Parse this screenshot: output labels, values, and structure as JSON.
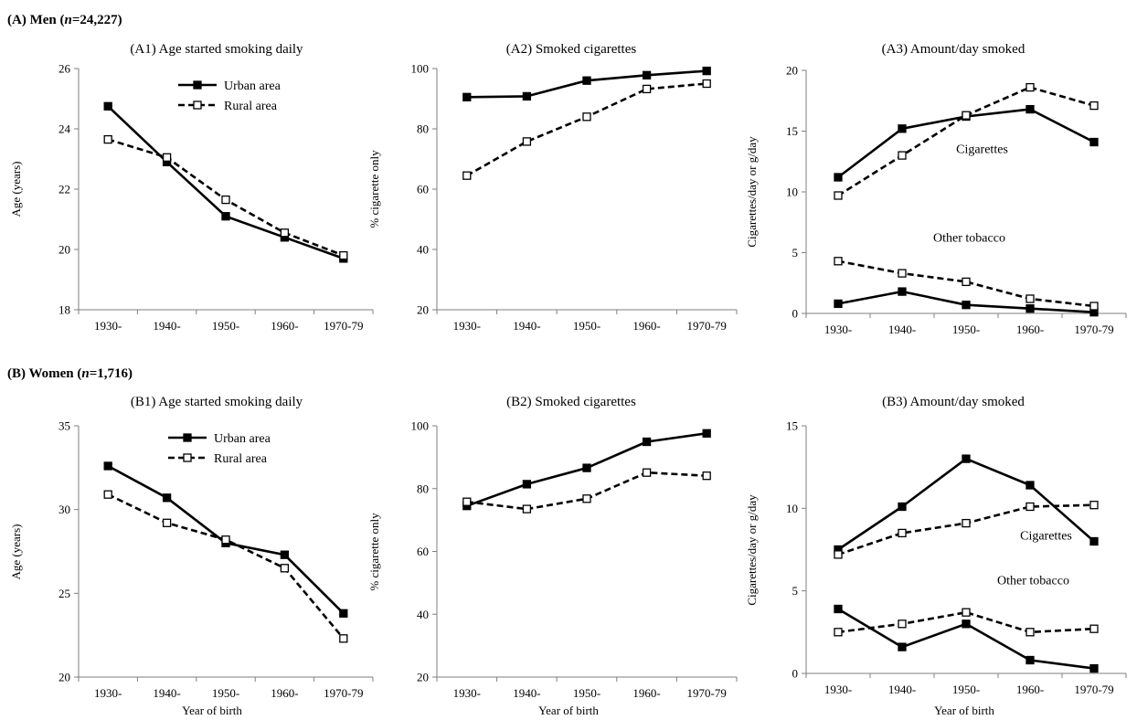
{
  "sections": [
    {
      "label_main": "(A) Men (",
      "label_italic": "n",
      "label_rest": "=24,227)"
    },
    {
      "label_main": "(B) Women (",
      "label_italic": "n",
      "label_rest": "=1,716)"
    }
  ],
  "colors": {
    "line": "#000000",
    "axis": "#7f7f7f",
    "marker_open_fill": "#ffffff"
  },
  "chart_data": [
    {
      "id": "A1",
      "type": "line",
      "title": "(A1) Age started smoking daily",
      "xlabel": "",
      "ylabel": "Age (years)",
      "categories": [
        "1930-",
        "1940-",
        "1950-",
        "1960-",
        "1970-79"
      ],
      "ylim": [
        18,
        26
      ],
      "yticks": [
        18,
        20,
        22,
        24,
        26
      ],
      "grid": false,
      "legend": {
        "position": "top-right",
        "entries": [
          "Urban area",
          "Rural area"
        ]
      },
      "annotations": [],
      "series": [
        {
          "name": "Urban area",
          "style": "solid",
          "marker": "filled-square",
          "values": [
            24.75,
            22.9,
            21.1,
            20.4,
            19.7
          ]
        },
        {
          "name": "Rural area",
          "style": "dashed",
          "marker": "open-square",
          "values": [
            23.65,
            23.05,
            21.65,
            20.55,
            19.8
          ]
        }
      ]
    },
    {
      "id": "A2",
      "type": "line",
      "title": "(A2) Smoked cigarettes",
      "xlabel": "",
      "ylabel": "% cigarette only",
      "categories": [
        "1930-",
        "1940-",
        "1950-",
        "1960-",
        "1970-79"
      ],
      "ylim": [
        20,
        100
      ],
      "yticks": [
        20,
        40,
        60,
        80,
        100
      ],
      "grid": false,
      "legend": null,
      "annotations": [],
      "series": [
        {
          "name": "Urban area",
          "style": "solid",
          "marker": "filled-square",
          "values": [
            90.5,
            90.8,
            96,
            97.8,
            99.2
          ]
        },
        {
          "name": "Rural area",
          "style": "dashed",
          "marker": "open-square",
          "values": [
            64.5,
            75.8,
            84,
            93.2,
            95
          ]
        }
      ]
    },
    {
      "id": "A3",
      "type": "line",
      "title": "(A3) Amount/day smoked",
      "xlabel": "",
      "ylabel": "Cigarettes/day or g/day",
      "categories": [
        "1930-",
        "1940-",
        "1950-",
        "1960-",
        "1970-79"
      ],
      "ylim": [
        0,
        20
      ],
      "yticks": [
        0,
        5,
        10,
        15,
        20
      ],
      "grid": false,
      "legend": null,
      "annotations": [
        {
          "text": "Cigarettes",
          "x": 2.25,
          "y": 13.2
        },
        {
          "text": "Other tobacco",
          "x": 2.05,
          "y": 5.9
        }
      ],
      "series": [
        {
          "name": "Urban area",
          "group": "Cigarettes",
          "style": "solid",
          "marker": "filled-square",
          "values": [
            11.2,
            15.2,
            16.2,
            16.8,
            14.1
          ]
        },
        {
          "name": "Rural area",
          "group": "Cigarettes",
          "style": "dashed",
          "marker": "open-square",
          "values": [
            9.7,
            13,
            16.3,
            18.6,
            17.1
          ]
        },
        {
          "name": "Urban area",
          "group": "Other tobacco",
          "style": "solid",
          "marker": "filled-square",
          "values": [
            0.8,
            1.8,
            0.7,
            0.4,
            0.1
          ]
        },
        {
          "name": "Rural area",
          "group": "Other tobacco",
          "style": "dashed",
          "marker": "open-square",
          "values": [
            4.3,
            3.3,
            2.6,
            1.2,
            0.6
          ]
        }
      ]
    },
    {
      "id": "B1",
      "type": "line",
      "title": "(B1) Age started smoking daily",
      "xlabel": "Year of birth",
      "ylabel": "Age (years)",
      "categories": [
        "1930-",
        "1940-",
        "1950-",
        "1960-",
        "1970-79"
      ],
      "ylim": [
        20,
        35
      ],
      "yticks": [
        20,
        25,
        30,
        35
      ],
      "grid": false,
      "legend": {
        "position": "top-right",
        "entries": [
          "Urban area",
          "Rural area"
        ]
      },
      "annotations": [],
      "series": [
        {
          "name": "Urban area",
          "style": "solid",
          "marker": "filled-square",
          "values": [
            32.6,
            30.7,
            28,
            27.3,
            23.8
          ]
        },
        {
          "name": "Rural area",
          "style": "dashed",
          "marker": "open-square",
          "values": [
            30.9,
            29.2,
            28.2,
            26.5,
            22.3
          ]
        }
      ]
    },
    {
      "id": "B2",
      "type": "line",
      "title": "(B2) Smoked cigarettes",
      "xlabel": "Year of birth",
      "ylabel": "% cigarette only",
      "categories": [
        "1930-",
        "1940-",
        "1950-",
        "1960-",
        "1970-79"
      ],
      "ylim": [
        20,
        100
      ],
      "yticks": [
        20,
        40,
        60,
        80,
        100
      ],
      "grid": false,
      "legend": null,
      "annotations": [],
      "series": [
        {
          "name": "Urban area",
          "style": "solid",
          "marker": "filled-square",
          "values": [
            74.5,
            81.4,
            86.6,
            94.9,
            97.6
          ]
        },
        {
          "name": "Rural area",
          "style": "dashed",
          "marker": "open-square",
          "values": [
            75.8,
            73.5,
            76.8,
            85.1,
            84.1
          ]
        }
      ]
    },
    {
      "id": "B3",
      "type": "line",
      "title": "(B3) Amount/day smoked",
      "xlabel": "Year of birth",
      "ylabel": "Cigarettes/day or g/day",
      "categories": [
        "1930-",
        "1940-",
        "1950-",
        "1960-",
        "1970-79"
      ],
      "ylim": [
        0,
        15
      ],
      "yticks": [
        0,
        5,
        10,
        15
      ],
      "grid": false,
      "legend": null,
      "annotations": [
        {
          "text": "Cigarettes",
          "x": 3.25,
          "y": 8.1
        },
        {
          "text": "Other tobacco",
          "x": 3.05,
          "y": 5.4
        }
      ],
      "series": [
        {
          "name": "Urban area",
          "group": "Cigarettes",
          "style": "solid",
          "marker": "filled-square",
          "values": [
            7.5,
            10.1,
            13,
            11.4,
            8
          ]
        },
        {
          "name": "Rural area",
          "group": "Cigarettes",
          "style": "dashed",
          "marker": "open-square",
          "values": [
            7.2,
            8.5,
            9.1,
            10.1,
            10.2
          ]
        },
        {
          "name": "Urban area",
          "group": "Other tobacco",
          "style": "solid",
          "marker": "filled-square",
          "values": [
            3.9,
            1.6,
            3,
            0.8,
            0.3
          ]
        },
        {
          "name": "Rural area",
          "group": "Other tobacco",
          "style": "dashed",
          "marker": "open-square",
          "values": [
            2.5,
            3,
            3.7,
            2.5,
            2.7
          ]
        }
      ]
    }
  ]
}
